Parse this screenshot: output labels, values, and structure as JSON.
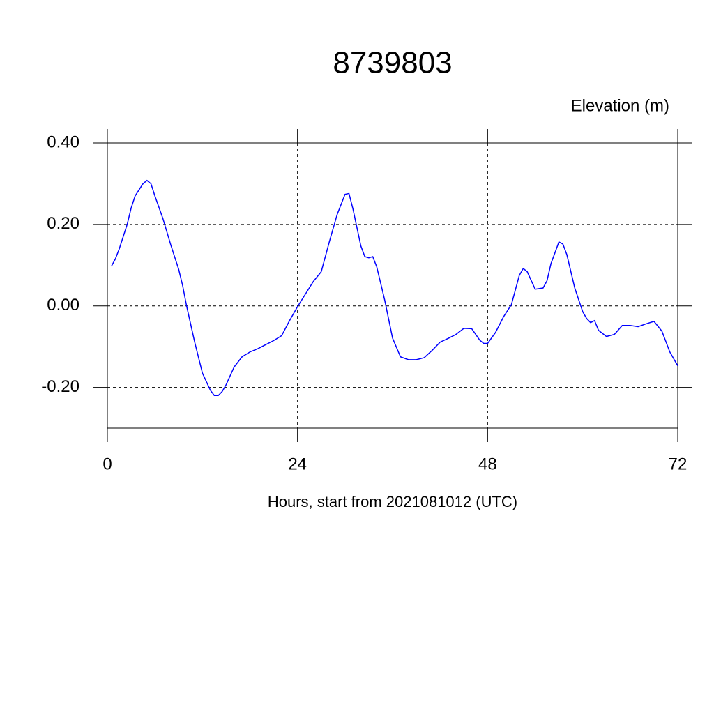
{
  "chart_data": {
    "type": "line",
    "title": "8739803",
    "subtitle": "Elevation (m)",
    "xlabel": "Hours, start from 2021081012 (UTC)",
    "xlim": [
      0,
      72
    ],
    "ylim": [
      -0.3,
      0.4
    ],
    "xticks": [
      0,
      24,
      48,
      72
    ],
    "yticks": [
      {
        "value": 0.4,
        "label": "0.40"
      },
      {
        "value": 0.2,
        "label": "0.20"
      },
      {
        "value": 0,
        "label": "0.00"
      },
      {
        "value": -0.2,
        "label": "-0.20"
      }
    ],
    "grid": true,
    "series": [
      {
        "color": "#0000ff",
        "x": [
          0.5,
          1,
          1.5,
          2,
          2.5,
          3,
          3.5,
          4,
          4.5,
          5,
          5.5,
          6,
          7,
          8,
          9,
          9.5,
          10,
          11,
          12,
          13,
          13.5,
          14,
          14.5,
          15,
          16,
          17,
          18,
          19,
          20,
          21,
          22,
          23,
          24,
          25,
          26,
          27,
          28,
          29,
          30,
          30.5,
          31,
          32,
          32.5,
          33,
          33.5,
          34,
          35,
          36,
          37,
          38,
          39,
          40,
          41,
          42,
          43,
          44,
          45,
          46,
          47,
          47.5,
          48,
          49,
          50,
          51,
          52,
          52.5,
          53,
          54,
          55,
          55.5,
          56,
          57,
          57.5,
          58,
          59,
          60,
          60.5,
          61,
          61.5,
          62,
          63,
          64,
          65,
          66,
          67,
          68,
          69,
          70,
          71,
          72
        ],
        "values": [
          0.097,
          0.115,
          0.14,
          0.17,
          0.2,
          0.24,
          0.27,
          0.285,
          0.3,
          0.308,
          0.3,
          0.27,
          0.215,
          0.15,
          0.09,
          0.05,
          0.0,
          -0.087,
          -0.165,
          -0.207,
          -0.22,
          -0.22,
          -0.21,
          -0.193,
          -0.15,
          -0.125,
          -0.113,
          -0.105,
          -0.095,
          -0.085,
          -0.073,
          -0.036,
          -0.002,
          0.029,
          0.06,
          0.084,
          0.156,
          0.224,
          0.274,
          0.276,
          0.238,
          0.147,
          0.121,
          0.118,
          0.121,
          0.096,
          0.015,
          -0.079,
          -0.125,
          -0.132,
          -0.132,
          -0.127,
          -0.109,
          -0.089,
          -0.08,
          -0.07,
          -0.055,
          -0.056,
          -0.084,
          -0.092,
          -0.092,
          -0.065,
          -0.027,
          0.003,
          0.075,
          0.092,
          0.084,
          0.041,
          0.044,
          0.062,
          0.104,
          0.157,
          0.152,
          0.126,
          0.044,
          -0.014,
          -0.031,
          -0.041,
          -0.036,
          -0.06,
          -0.075,
          -0.07,
          -0.048,
          -0.048,
          -0.051,
          -0.044,
          -0.038,
          -0.062,
          -0.113,
          -0.147
        ]
      }
    ]
  }
}
